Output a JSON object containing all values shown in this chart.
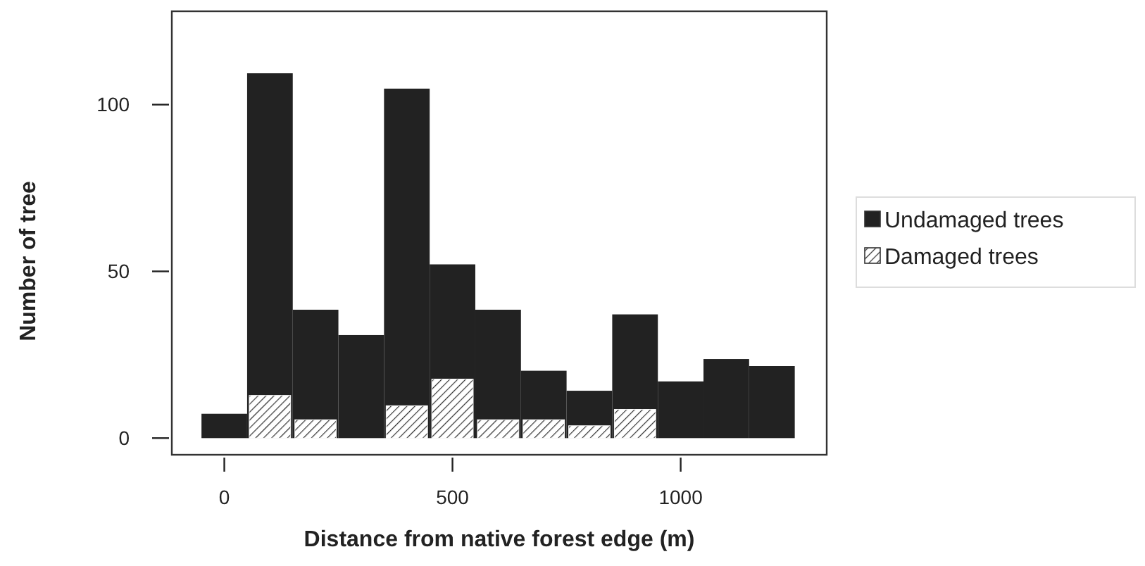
{
  "chart_data": {
    "type": "histogram",
    "xlabel": "Distance from native forest edge (m)",
    "ylabel": "Number of tree",
    "bins": [
      -50,
      50,
      150,
      250,
      350,
      450,
      550,
      650,
      750,
      850,
      950,
      1050,
      1150,
      1250
    ],
    "series": [
      {
        "name": "Undamaged trees",
        "color": "#222222",
        "values": [
          7.3,
          109.4,
          38.5,
          30.9,
          104.8,
          52.1,
          38.5,
          20.2,
          14.2,
          37.1,
          17,
          23.7,
          21.6
        ]
      },
      {
        "name": "Damaged trees",
        "color": "#ffffff",
        "values": [
          null,
          12.8,
          5.5,
          null,
          9.7,
          17.7,
          5.5,
          5.5,
          3.7,
          8.6,
          null,
          null,
          null
        ]
      }
    ],
    "xlim": [
      -115,
      1320
    ],
    "ylim": [
      -5,
      128
    ],
    "xticks": [
      0,
      500,
      1000
    ],
    "yticks": [
      0,
      50,
      100
    ],
    "grid": false,
    "legend": "right"
  }
}
